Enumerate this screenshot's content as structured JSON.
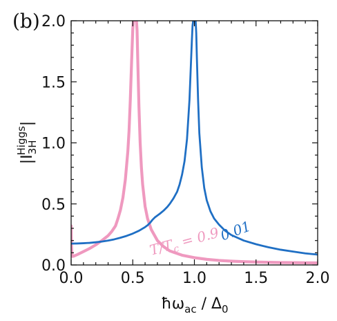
{
  "panel_label": "(b)",
  "colors": {
    "blue": "#1f6fc4",
    "pink": "#ef99bf",
    "axis": "#111111"
  },
  "chart_data": {
    "type": "line",
    "title": "",
    "xlabel": "ħω_ac / Δ_0",
    "ylabel": "|I_3H^Higgs|",
    "xlim": [
      0.0,
      2.0
    ],
    "ylim": [
      0.0,
      2.0
    ],
    "xticks": [
      "0.0",
      "0.5",
      "1.0",
      "1.5",
      "2.0"
    ],
    "yticks": [
      "0.0",
      "0.5",
      "1.0",
      "1.5",
      "2.0"
    ],
    "grid": false,
    "legend": "none",
    "series": [
      {
        "name": "0.01",
        "color": "#1f6fc4",
        "x": [
          0.0,
          0.05,
          0.1,
          0.15,
          0.2,
          0.25,
          0.3,
          0.35,
          0.4,
          0.45,
          0.5,
          0.55,
          0.6,
          0.62,
          0.64,
          0.66,
          0.68,
          0.7,
          0.72,
          0.75,
          0.78,
          0.8,
          0.83,
          0.86,
          0.88,
          0.9,
          0.92,
          0.94,
          0.96,
          0.97,
          0.98,
          0.985,
          0.99,
          0.995,
          1.0,
          1.005,
          1.01,
          1.015,
          1.02,
          1.03,
          1.04,
          1.06,
          1.08,
          1.1,
          1.13,
          1.16,
          1.2,
          1.25,
          1.3,
          1.4,
          1.5,
          1.6,
          1.7,
          1.8,
          1.9,
          2.0
        ],
        "y": [
          0.175,
          0.176,
          0.178,
          0.181,
          0.186,
          0.192,
          0.2,
          0.21,
          0.223,
          0.238,
          0.257,
          0.28,
          0.31,
          0.325,
          0.345,
          0.37,
          0.39,
          0.405,
          0.42,
          0.445,
          0.475,
          0.5,
          0.545,
          0.6,
          0.66,
          0.74,
          0.85,
          1.03,
          1.35,
          1.6,
          1.85,
          1.96,
          2.0,
          2.0,
          2.0,
          2.0,
          2.0,
          1.9,
          1.7,
          1.35,
          1.08,
          0.8,
          0.63,
          0.53,
          0.44,
          0.38,
          0.33,
          0.28,
          0.245,
          0.2,
          0.17,
          0.145,
          0.125,
          0.11,
          0.095,
          0.085
        ]
      },
      {
        "name": "T/T_c = 0.9",
        "color": "#ef99bf",
        "x": [
          0.0,
          0.001,
          0.003,
          0.006,
          0.01,
          0.02,
          0.05,
          0.1,
          0.15,
          0.2,
          0.25,
          0.3,
          0.33,
          0.36,
          0.38,
          0.4,
          0.42,
          0.44,
          0.46,
          0.47,
          0.48,
          0.49,
          0.5,
          0.505,
          0.51,
          0.515,
          0.52,
          0.525,
          0.53,
          0.535,
          0.54,
          0.55,
          0.56,
          0.57,
          0.58,
          0.6,
          0.62,
          0.65,
          0.7,
          0.75,
          0.8,
          0.9,
          1.0,
          1.1,
          1.2,
          1.3,
          1.4,
          1.5,
          1.6,
          1.7,
          1.8,
          1.9,
          2.0
        ],
        "y": [
          0.32,
          0.22,
          0.15,
          0.1,
          0.07,
          0.072,
          0.085,
          0.11,
          0.135,
          0.165,
          0.2,
          0.24,
          0.275,
          0.32,
          0.38,
          0.45,
          0.55,
          0.7,
          0.93,
          1.1,
          1.35,
          1.65,
          1.93,
          2.0,
          2.0,
          2.0,
          2.0,
          2.0,
          2.0,
          1.92,
          1.7,
          1.3,
          1.0,
          0.8,
          0.66,
          0.48,
          0.38,
          0.29,
          0.2,
          0.15,
          0.115,
          0.08,
          0.06,
          0.046,
          0.037,
          0.031,
          0.027,
          0.024,
          0.022,
          0.02,
          0.019,
          0.018,
          0.017
        ]
      }
    ],
    "annotations": [
      {
        "text": "0.01",
        "x": 1.23,
        "y": 0.2,
        "rotation": -20,
        "color": "#1f6fc4"
      },
      {
        "text": "T/T_c = 0.9",
        "x": 0.65,
        "y": 0.08,
        "rotation": -15,
        "color": "#ef99bf"
      }
    ]
  }
}
